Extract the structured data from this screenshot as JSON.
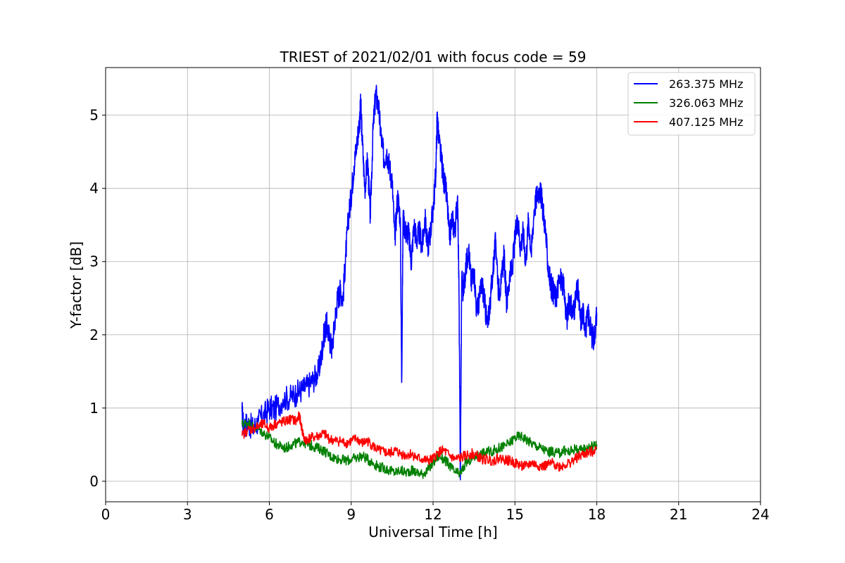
{
  "chart_data": {
    "type": "line",
    "title": "TRIEST of 2021/02/01 with focus code = 59",
    "xlabel": "Universal Time [h]",
    "ylabel": "Y-factor [dB]",
    "xlim": [
      0,
      24
    ],
    "ylim": [
      -0.28,
      5.65
    ],
    "xticks": [
      0,
      3,
      6,
      9,
      12,
      15,
      18,
      21,
      24
    ],
    "yticks": [
      0,
      1,
      2,
      3,
      4,
      5
    ],
    "grid": true,
    "legend_position": "top-right",
    "series": [
      {
        "name": "263.375 MHz",
        "color": "#0000ff",
        "x": [
          5.0,
          5.05,
          5.2,
          5.4,
          5.6,
          5.8,
          6.0,
          6.2,
          6.5,
          6.8,
          7.0,
          7.2,
          7.4,
          7.6,
          7.8,
          7.9,
          8.0,
          8.1,
          8.2,
          8.3,
          8.4,
          8.5,
          8.6,
          8.7,
          8.8,
          8.9,
          9.0,
          9.1,
          9.2,
          9.3,
          9.35,
          9.4,
          9.5,
          9.6,
          9.7,
          9.8,
          9.9,
          10.0,
          10.1,
          10.2,
          10.3,
          10.4,
          10.5,
          10.6,
          10.7,
          10.8,
          10.85,
          10.9,
          11.0,
          11.1,
          11.2,
          11.3,
          11.4,
          11.5,
          11.6,
          11.7,
          11.8,
          11.9,
          12.0,
          12.1,
          12.15,
          12.2,
          12.3,
          12.4,
          12.5,
          12.6,
          12.7,
          12.8,
          12.9,
          12.95,
          13.0,
          13.05,
          13.1,
          13.2,
          13.3,
          13.4,
          13.5,
          13.6,
          13.7,
          13.8,
          13.9,
          14.0,
          14.1,
          14.2,
          14.3,
          14.4,
          14.5,
          14.6,
          14.7,
          14.8,
          14.9,
          15.0,
          15.1,
          15.2,
          15.3,
          15.4,
          15.5,
          15.6,
          15.7,
          15.8,
          15.9,
          16.0,
          16.1,
          16.2,
          16.3,
          16.4,
          16.5,
          16.6,
          16.7,
          16.8,
          16.9,
          17.0,
          17.1,
          17.2,
          17.3,
          17.4,
          17.5,
          17.6,
          17.7,
          17.8,
          17.9,
          18.0
        ],
        "y": [
          0.95,
          0.75,
          0.8,
          0.72,
          0.82,
          0.9,
          1.0,
          0.98,
          1.12,
          1.15,
          1.2,
          1.25,
          1.3,
          1.38,
          1.5,
          1.7,
          2.0,
          2.15,
          1.95,
          1.8,
          2.2,
          2.5,
          2.6,
          2.5,
          3.1,
          3.6,
          3.9,
          4.3,
          4.6,
          4.9,
          5.15,
          4.7,
          4.0,
          4.4,
          3.6,
          4.8,
          5.3,
          5.1,
          4.7,
          4.4,
          4.5,
          4.3,
          4.1,
          3.3,
          3.9,
          3.6,
          1.35,
          3.6,
          3.4,
          3.4,
          3.0,
          3.5,
          3.3,
          3.4,
          3.2,
          3.6,
          3.2,
          3.4,
          3.7,
          4.2,
          5.0,
          4.7,
          4.4,
          4.1,
          3.9,
          3.3,
          3.6,
          3.4,
          3.9,
          2.6,
          0.02,
          2.8,
          2.6,
          2.9,
          3.2,
          2.7,
          2.9,
          2.3,
          2.5,
          2.7,
          2.4,
          2.1,
          2.5,
          2.9,
          3.3,
          2.6,
          2.7,
          3.1,
          2.4,
          2.8,
          2.9,
          3.3,
          3.6,
          3.2,
          3.4,
          3.0,
          3.6,
          3.1,
          3.7,
          3.9,
          4.0,
          3.8,
          3.5,
          3.0,
          2.7,
          2.6,
          2.5,
          2.7,
          2.75,
          2.6,
          2.2,
          2.5,
          2.3,
          2.4,
          2.65,
          2.2,
          2.3,
          2.1,
          2.3,
          2.0,
          1.95,
          2.3
        ]
      },
      {
        "name": "326.063 MHz",
        "color": "#008000",
        "x": [
          5.0,
          5.2,
          5.4,
          5.6,
          5.8,
          6.0,
          6.2,
          6.4,
          6.6,
          6.8,
          7.0,
          7.2,
          7.4,
          7.6,
          7.8,
          8.0,
          8.2,
          8.4,
          8.6,
          8.8,
          9.0,
          9.2,
          9.4,
          9.6,
          9.8,
          10.0,
          10.2,
          10.4,
          10.6,
          10.8,
          11.0,
          11.2,
          11.4,
          11.6,
          11.8,
          12.0,
          12.2,
          12.4,
          12.6,
          12.8,
          13.0,
          13.2,
          13.4,
          13.6,
          13.8,
          14.0,
          14.2,
          14.4,
          14.6,
          14.8,
          15.0,
          15.2,
          15.4,
          15.6,
          15.8,
          16.0,
          16.2,
          16.4,
          16.6,
          16.8,
          17.0,
          17.2,
          17.4,
          17.6,
          17.8,
          18.0
        ],
        "y": [
          0.78,
          0.8,
          0.75,
          0.72,
          0.65,
          0.6,
          0.52,
          0.48,
          0.45,
          0.5,
          0.52,
          0.55,
          0.5,
          0.48,
          0.45,
          0.42,
          0.35,
          0.32,
          0.3,
          0.28,
          0.3,
          0.32,
          0.35,
          0.3,
          0.25,
          0.2,
          0.18,
          0.15,
          0.12,
          0.15,
          0.12,
          0.15,
          0.12,
          0.1,
          0.15,
          0.25,
          0.35,
          0.3,
          0.22,
          0.12,
          0.1,
          0.25,
          0.3,
          0.35,
          0.38,
          0.4,
          0.42,
          0.45,
          0.48,
          0.52,
          0.6,
          0.62,
          0.58,
          0.52,
          0.48,
          0.45,
          0.4,
          0.4,
          0.38,
          0.42,
          0.4,
          0.45,
          0.42,
          0.45,
          0.48,
          0.5
        ]
      },
      {
        "name": "407.125 MHz",
        "color": "#ff0000",
        "x": [
          5.0,
          5.2,
          5.4,
          5.6,
          5.8,
          6.0,
          6.2,
          6.4,
          6.6,
          6.8,
          7.0,
          7.1,
          7.2,
          7.3,
          7.4,
          7.6,
          7.8,
          8.0,
          8.2,
          8.4,
          8.6,
          8.8,
          9.0,
          9.2,
          9.4,
          9.6,
          9.8,
          10.0,
          10.2,
          10.4,
          10.6,
          10.8,
          11.0,
          11.2,
          11.4,
          11.6,
          11.8,
          12.0,
          12.2,
          12.4,
          12.6,
          12.8,
          13.0,
          13.2,
          13.4,
          13.6,
          13.8,
          14.0,
          14.2,
          14.4,
          14.6,
          14.8,
          15.0,
          15.2,
          15.4,
          15.6,
          15.8,
          16.0,
          16.2,
          16.4,
          16.6,
          16.8,
          17.0,
          17.2,
          17.4,
          17.6,
          17.8,
          18.0
        ],
        "y": [
          0.62,
          0.7,
          0.72,
          0.75,
          0.78,
          0.72,
          0.78,
          0.8,
          0.82,
          0.85,
          0.82,
          0.9,
          0.7,
          0.55,
          0.58,
          0.6,
          0.62,
          0.65,
          0.58,
          0.55,
          0.55,
          0.52,
          0.55,
          0.58,
          0.52,
          0.55,
          0.48,
          0.42,
          0.4,
          0.38,
          0.42,
          0.38,
          0.35,
          0.38,
          0.32,
          0.3,
          0.28,
          0.3,
          0.4,
          0.42,
          0.35,
          0.3,
          0.32,
          0.35,
          0.38,
          0.35,
          0.3,
          0.3,
          0.28,
          0.32,
          0.3,
          0.28,
          0.25,
          0.22,
          0.2,
          0.25,
          0.22,
          0.2,
          0.22,
          0.25,
          0.2,
          0.22,
          0.25,
          0.3,
          0.35,
          0.38,
          0.4,
          0.45
        ]
      }
    ]
  }
}
